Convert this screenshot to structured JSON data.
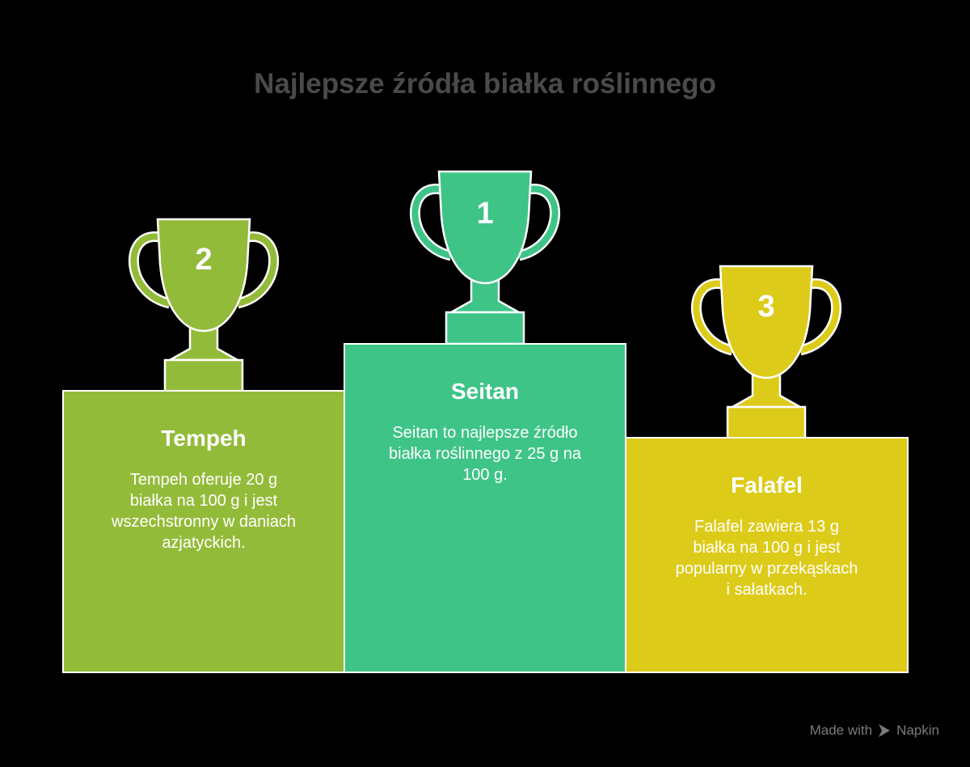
{
  "title": "Najlepsze źródła białka roślinnego",
  "colors": {
    "tempeh": "#93bb3a",
    "seitan": "#3ec487",
    "falafel": "#ddcb1a"
  },
  "podium": [
    {
      "rank": "1",
      "name": "Seitan",
      "text": "Seitan to najlepsze źródło białka roślinnego z 25 g na 100 g."
    },
    {
      "rank": "2",
      "name": "Tempeh",
      "text": "Tempeh oferuje 20 g białka na 100 g i jest wszechstronny w daniach azjatyckich."
    },
    {
      "rank": "3",
      "name": "Falafel",
      "text": "Falafel zawiera 13 g białka na 100 g i jest popularny w przekąskach i sałatkach."
    }
  ],
  "footer": {
    "made_with": "Made with",
    "brand": "Napkin",
    "icon": "napkin-logo-icon"
  }
}
